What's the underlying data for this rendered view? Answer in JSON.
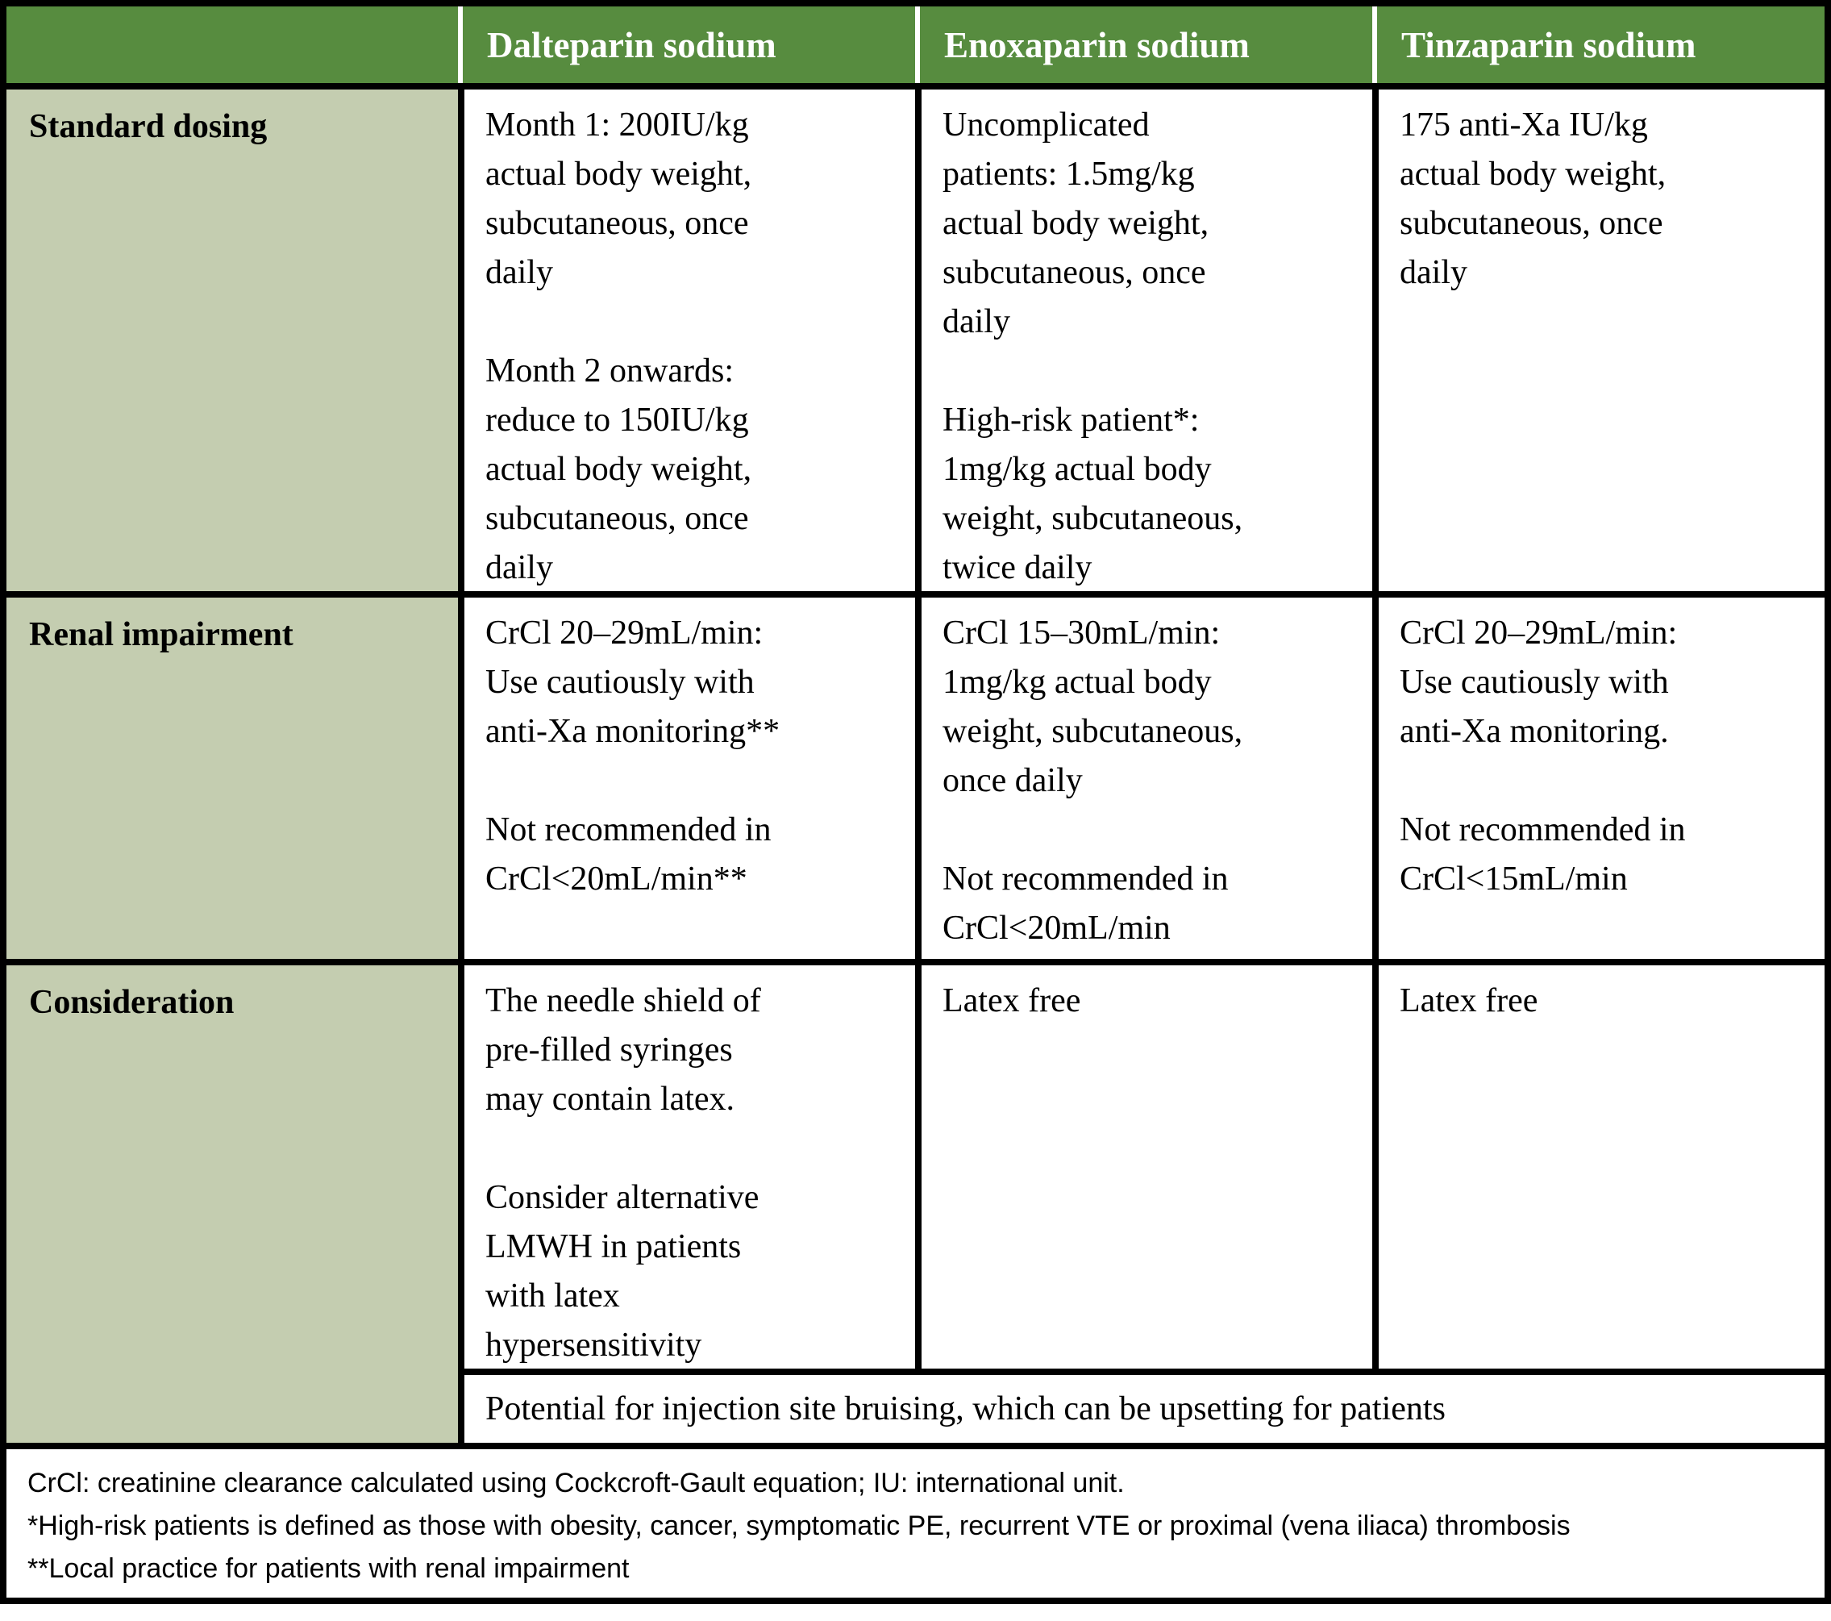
{
  "colors": {
    "header_bg": "#578c3f",
    "header_text": "#ffffff",
    "label_bg": "#c4cdb0",
    "border": "#000000",
    "body_text": "#000000"
  },
  "header": {
    "corner": "",
    "col_dalteparin": "Dalteparin sodium",
    "col_enoxaparin": "Enoxaparin sodium",
    "col_tinzaparin": "Tinzaparin sodium"
  },
  "rows": [
    {
      "label": "Standard dosing",
      "dalteparin": "Month 1: 200IU/kg\nactual body weight,\nsubcutaneous, once\ndaily\n\nMonth 2 onwards:\nreduce to 150IU/kg\nactual body weight,\nsubcutaneous, once\ndaily",
      "enoxaparin": "Uncomplicated\npatients: 1.5mg/kg\nactual body weight,\nsubcutaneous, once\ndaily\n\nHigh-risk patient*:\n1mg/kg actual body\nweight, subcutaneous,\ntwice daily",
      "tinzaparin": "175 anti-Xa IU/kg\nactual body weight,\nsubcutaneous, once\ndaily"
    },
    {
      "label": "Renal impairment",
      "dalteparin": "CrCl 20–29mL/min:\nUse cautiously with\nanti-Xa monitoring**\n\nNot recommended in\nCrCl<20mL/min**",
      "enoxaparin": "CrCl 15–30mL/min:\n1mg/kg actual body\nweight, subcutaneous,\nonce daily\n\nNot recommended in\nCrCl<20mL/min",
      "tinzaparin": "CrCl 20–29mL/min:\nUse cautiously with\nanti-Xa monitoring.\n\nNot recommended in\nCrCl<15mL/min"
    },
    {
      "label": "Consideration",
      "dalteparin": "The needle shield of\npre-filled syringes\nmay contain latex.\n\nConsider alternative\nLMWH in patients\nwith latex\nhypersensitivity",
      "enoxaparin": "Latex free",
      "tinzaparin": "Latex free"
    }
  ],
  "span_note": "Potential for injection site bruising, which can be upsetting for patients",
  "footnotes": [
    "CrCl: creatinine clearance calculated using Cockcroft-Gault equation; IU: international unit.",
    "*High-risk patients is defined as those with obesity, cancer, symptomatic PE, recurrent VTE or proximal (vena iliaca) thrombosis",
    "**Local practice for patients with renal impairment"
  ]
}
